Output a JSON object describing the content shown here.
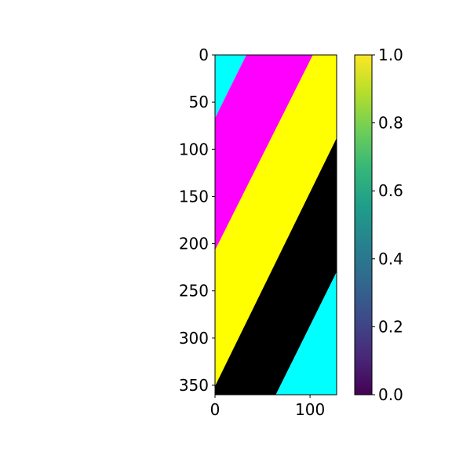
{
  "chart_data": {
    "type": "heatmap",
    "title": "",
    "xlabel": "",
    "ylabel": "",
    "xlim": [
      0,
      128
    ],
    "ylim": [
      360,
      0
    ],
    "x_ticks": [
      0,
      100
    ],
    "y_ticks": [
      0,
      50,
      100,
      150,
      200,
      250,
      300,
      350
    ],
    "grid": false,
    "image_bands": [
      {
        "name": "cyan-corner-top",
        "color": "#00ffff",
        "polygon": [
          [
            0,
            0
          ],
          [
            33,
            0
          ],
          [
            0,
            67
          ]
        ]
      },
      {
        "name": "magenta-band",
        "color": "#ff00ff",
        "polygon": [
          [
            33,
            0
          ],
          [
            103,
            0
          ],
          [
            0,
            207
          ],
          [
            0,
            67
          ]
        ]
      },
      {
        "name": "yellow-band",
        "color": "#ffff00",
        "polygon": [
          [
            103,
            0
          ],
          [
            128,
            0
          ],
          [
            128,
            88
          ],
          [
            0,
            351
          ],
          [
            0,
            207
          ]
        ]
      },
      {
        "name": "black-band",
        "color": "#000000",
        "polygon": [
          [
            128,
            88
          ],
          [
            128,
            230
          ],
          [
            64,
            360
          ],
          [
            0,
            360
          ],
          [
            0,
            351
          ]
        ]
      },
      {
        "name": "cyan-corner-bottom",
        "color": "#00ffff",
        "polygon": [
          [
            128,
            230
          ],
          [
            128,
            360
          ],
          [
            64,
            360
          ]
        ]
      }
    ],
    "colorbar": {
      "colormap": "viridis",
      "range": [
        0,
        1
      ],
      "ticks": [
        0.0,
        0.2,
        0.4,
        0.6,
        0.8,
        1.0
      ],
      "tick_labels": [
        "0.0",
        "0.2",
        "0.4",
        "0.6",
        "0.8",
        "1.0"
      ],
      "stops": [
        "#440154",
        "#482878",
        "#3e4a89",
        "#31688e",
        "#26828e",
        "#1f9e89",
        "#35b779",
        "#6ece58",
        "#b5de2b",
        "#fde725"
      ]
    }
  }
}
